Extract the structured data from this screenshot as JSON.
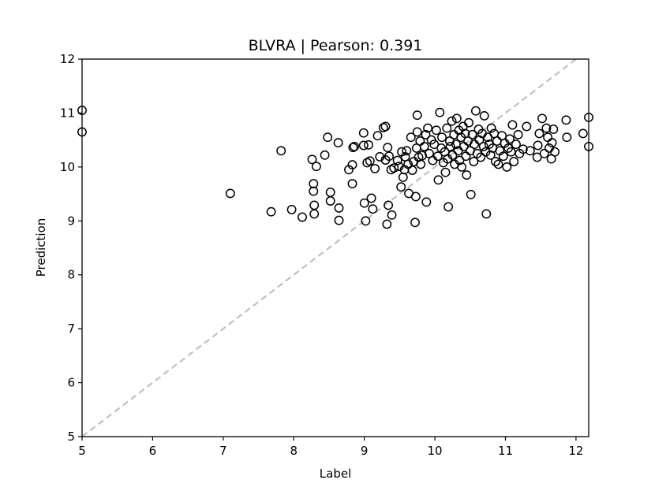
{
  "chart_data": {
    "type": "scatter",
    "title": "BLVRA  |  Pearson: 0.391",
    "xlabel": "Label",
    "ylabel": "Prediction",
    "xlim": [
      5.0,
      12.18
    ],
    "ylim": [
      5.0,
      12.0
    ],
    "xticks": [
      5,
      6,
      7,
      8,
      9,
      10,
      11,
      12
    ],
    "yticks": [
      5,
      6,
      7,
      8,
      9,
      10,
      11,
      12
    ],
    "reference_line": {
      "style": "dashed",
      "color": "#c0c0c0",
      "from": [
        5.0,
        5.0
      ],
      "to": [
        12.18,
        12.18
      ]
    },
    "marker": {
      "shape": "open-circle",
      "edge_color": "#000000"
    },
    "grid": false,
    "legend": "none",
    "points": [
      [
        5.0,
        11.05
      ],
      [
        5.0,
        10.65
      ],
      [
        7.1,
        9.51
      ],
      [
        7.68,
        9.17
      ],
      [
        7.82,
        10.3
      ],
      [
        7.97,
        9.21
      ],
      [
        8.12,
        9.07
      ],
      [
        8.26,
        10.14
      ],
      [
        8.28,
        9.69
      ],
      [
        8.28,
        9.55
      ],
      [
        8.29,
        9.29
      ],
      [
        8.29,
        9.13
      ],
      [
        8.32,
        10.01
      ],
      [
        8.44,
        10.22
      ],
      [
        8.48,
        10.55
      ],
      [
        8.52,
        9.53
      ],
      [
        8.52,
        9.37
      ],
      [
        8.63,
        10.45
      ],
      [
        8.64,
        9.24
      ],
      [
        8.64,
        9.01
      ],
      [
        8.78,
        9.95
      ],
      [
        8.83,
        10.04
      ],
      [
        8.83,
        9.69
      ],
      [
        8.84,
        10.36
      ],
      [
        8.86,
        10.38
      ],
      [
        8.99,
        10.4
      ],
      [
        8.99,
        10.63
      ],
      [
        9.0,
        9.33
      ],
      [
        9.02,
        9.0
      ],
      [
        9.04,
        10.08
      ],
      [
        9.06,
        10.41
      ],
      [
        9.08,
        10.11
      ],
      [
        9.1,
        9.42
      ],
      [
        9.12,
        9.22
      ],
      [
        9.15,
        9.97
      ],
      [
        9.19,
        10.58
      ],
      [
        9.22,
        10.19
      ],
      [
        9.27,
        10.73
      ],
      [
        9.3,
        10.75
      ],
      [
        9.3,
        10.13
      ],
      [
        9.32,
        8.94
      ],
      [
        9.33,
        10.36
      ],
      [
        9.34,
        9.29
      ],
      [
        9.35,
        10.2
      ],
      [
        9.38,
        9.95
      ],
      [
        9.39,
        9.11
      ],
      [
        9.42,
        9.98
      ],
      [
        9.47,
        10.12
      ],
      [
        9.49,
        10.01
      ],
      [
        9.52,
        9.63
      ],
      [
        9.53,
        10.28
      ],
      [
        9.55,
        9.81
      ],
      [
        9.57,
        9.95
      ],
      [
        9.58,
        10.19
      ],
      [
        9.6,
        10.3
      ],
      [
        9.62,
        10.05
      ],
      [
        9.63,
        9.51
      ],
      [
        9.66,
        10.55
      ],
      [
        9.68,
        9.94
      ],
      [
        9.7,
        10.1
      ],
      [
        9.72,
        8.97
      ],
      [
        9.73,
        9.45
      ],
      [
        9.74,
        10.35
      ],
      [
        9.75,
        10.65
      ],
      [
        9.75,
        10.96
      ],
      [
        9.77,
        10.18
      ],
      [
        9.79,
        10.48
      ],
      [
        9.8,
        10.05
      ],
      [
        9.82,
        10.21
      ],
      [
        9.85,
        10.38
      ],
      [
        9.87,
        10.6
      ],
      [
        9.88,
        9.35
      ],
      [
        9.9,
        10.72
      ],
      [
        9.92,
        10.25
      ],
      [
        9.95,
        10.5
      ],
      [
        9.97,
        10.12
      ],
      [
        9.99,
        10.42
      ],
      [
        10.02,
        10.68
      ],
      [
        10.04,
        10.2
      ],
      [
        10.05,
        9.76
      ],
      [
        10.07,
        11.01
      ],
      [
        10.09,
        10.35
      ],
      [
        10.1,
        10.55
      ],
      [
        10.12,
        10.08
      ],
      [
        10.14,
        10.28
      ],
      [
        10.15,
        9.9
      ],
      [
        10.17,
        10.72
      ],
      [
        10.18,
        10.15
      ],
      [
        10.19,
        9.26
      ],
      [
        10.21,
        10.48
      ],
      [
        10.22,
        10.38
      ],
      [
        10.24,
        10.85
      ],
      [
        10.25,
        10.22
      ],
      [
        10.27,
        10.6
      ],
      [
        10.28,
        10.05
      ],
      [
        10.3,
        10.42
      ],
      [
        10.31,
        10.9
      ],
      [
        10.33,
        10.3
      ],
      [
        10.34,
        10.68
      ],
      [
        10.35,
        10.12
      ],
      [
        10.37,
        10.55
      ],
      [
        10.38,
        10.0
      ],
      [
        10.4,
        10.75
      ],
      [
        10.41,
        10.38
      ],
      [
        10.43,
        10.62
      ],
      [
        10.44,
        10.2
      ],
      [
        10.45,
        9.85
      ],
      [
        10.47,
        10.48
      ],
      [
        10.48,
        10.82
      ],
      [
        10.5,
        10.3
      ],
      [
        10.51,
        9.49
      ],
      [
        10.53,
        10.6
      ],
      [
        10.55,
        10.1
      ],
      [
        10.56,
        10.42
      ],
      [
        10.58,
        11.04
      ],
      [
        10.6,
        10.25
      ],
      [
        10.62,
        10.7
      ],
      [
        10.63,
        10.5
      ],
      [
        10.65,
        10.18
      ],
      [
        10.67,
        10.62
      ],
      [
        10.69,
        10.38
      ],
      [
        10.7,
        10.95
      ],
      [
        10.72,
        10.28
      ],
      [
        10.73,
        9.13
      ],
      [
        10.75,
        10.55
      ],
      [
        10.77,
        10.42
      ],
      [
        10.79,
        10.22
      ],
      [
        10.8,
        10.72
      ],
      [
        10.82,
        10.35
      ],
      [
        10.84,
        10.62
      ],
      [
        10.86,
        10.1
      ],
      [
        10.88,
        10.48
      ],
      [
        10.9,
        10.05
      ],
      [
        10.92,
        10.3
      ],
      [
        10.95,
        10.58
      ],
      [
        10.97,
        10.2
      ],
      [
        10.99,
        10.44
      ],
      [
        11.02,
        10.0
      ],
      [
        11.04,
        10.35
      ],
      [
        11.06,
        10.52
      ],
      [
        11.08,
        10.28
      ],
      [
        11.1,
        10.78
      ],
      [
        11.12,
        10.1
      ],
      [
        11.15,
        10.42
      ],
      [
        11.18,
        10.6
      ],
      [
        11.2,
        10.25
      ],
      [
        11.25,
        10.33
      ],
      [
        11.3,
        10.75
      ],
      [
        11.35,
        10.3
      ],
      [
        11.45,
        10.18
      ],
      [
        11.46,
        10.4
      ],
      [
        11.48,
        10.62
      ],
      [
        11.52,
        10.9
      ],
      [
        11.55,
        10.25
      ],
      [
        11.58,
        10.72
      ],
      [
        11.6,
        10.55
      ],
      [
        11.62,
        10.35
      ],
      [
        11.65,
        10.15
      ],
      [
        11.66,
        10.45
      ],
      [
        11.68,
        10.7
      ],
      [
        11.7,
        10.28
      ],
      [
        11.86,
        10.87
      ],
      [
        11.87,
        10.55
      ],
      [
        12.1,
        10.62
      ],
      [
        12.18,
        10.92
      ],
      [
        12.18,
        10.38
      ]
    ]
  }
}
